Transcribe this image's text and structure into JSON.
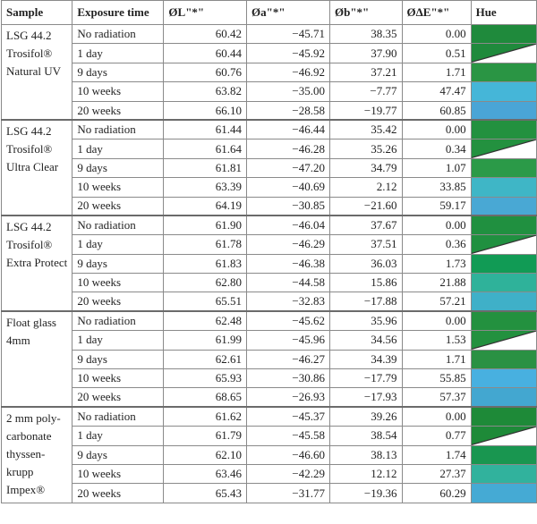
{
  "headers": [
    "Sample",
    "Exposure time",
    "ØL\"*\"",
    "Øa\"*\"",
    "Øb\"*\"",
    "ØΔE\"*\"",
    "Hue"
  ],
  "groups": [
    {
      "sample": "LSG 44.2 Trosifol® Natural UV",
      "rows": [
        {
          "time": "No radiation",
          "L": "60.42",
          "a": "−45.71",
          "b": "38.35",
          "dE": "0.00",
          "hue": "#1f8a3c",
          "diag": false
        },
        {
          "time": "1 day",
          "L": "60.44",
          "a": "−45.92",
          "b": "37.90",
          "dE": "0.51",
          "hue": "#1f8a3c",
          "diag": true
        },
        {
          "time": "9 days",
          "L": "60.76",
          "a": "−46.92",
          "b": "37.21",
          "dE": "1.71",
          "hue": "#2a9544",
          "diag": false
        },
        {
          "time": "10 weeks",
          "L": "63.82",
          "a": "−35.00",
          "b": "−7.77",
          "dE": "47.47",
          "hue": "#45b6d8",
          "diag": false
        },
        {
          "time": "20 weeks",
          "L": "66.10",
          "a": "−28.58",
          "b": "−19.77",
          "dE": "60.85",
          "hue": "#4aa5d6",
          "diag": false
        }
      ]
    },
    {
      "sample": "LSG 44.2 Trosifol® Ultra Clear",
      "rows": [
        {
          "time": "No radiation",
          "L": "61.44",
          "a": "−46.44",
          "b": "35.42",
          "dE": "0.00",
          "hue": "#23913f",
          "diag": false
        },
        {
          "time": "1 day",
          "L": "61.64",
          "a": "−46.28",
          "b": "35.26",
          "dE": "0.34",
          "hue": "#23913f",
          "diag": true
        },
        {
          "time": "9 days",
          "L": "61.81",
          "a": "−47.20",
          "b": "34.79",
          "dE": "1.07",
          "hue": "#2b9a48",
          "diag": false
        },
        {
          "time": "10 weeks",
          "L": "63.39",
          "a": "−40.69",
          "b": "2.12",
          "dE": "33.85",
          "hue": "#3fb6c6",
          "diag": false
        },
        {
          "time": "20 weeks",
          "L": "64.19",
          "a": "−30.85",
          "b": "−21.60",
          "dE": "59.17",
          "hue": "#49a8d4",
          "diag": false
        }
      ]
    },
    {
      "sample": "LSG 44.2 Trosifol® Extra Protect",
      "rows": [
        {
          "time": "No radiation",
          "L": "61.90",
          "a": "−46.04",
          "b": "37.67",
          "dE": "0.00",
          "hue": "#209040",
          "diag": false
        },
        {
          "time": "1 day",
          "L": "61.78",
          "a": "−46.29",
          "b": "37.51",
          "dE": "0.36",
          "hue": "#209040",
          "diag": true
        },
        {
          "time": "9 days",
          "L": "61.83",
          "a": "−46.38",
          "b": "36.03",
          "dE": "1.73",
          "hue": "#119b55",
          "diag": false
        },
        {
          "time": "10 weeks",
          "L": "62.80",
          "a": "−44.58",
          "b": "15.86",
          "dE": "21.88",
          "hue": "#2fb29a",
          "diag": false
        },
        {
          "time": "20 weeks",
          "L": "65.51",
          "a": "−32.83",
          "b": "−17.88",
          "dE": "57.21",
          "hue": "#3fb0c8",
          "diag": false
        }
      ]
    },
    {
      "sample": "Float glass 4mm",
      "rows": [
        {
          "time": "No radiation",
          "L": "62.48",
          "a": "−45.62",
          "b": "35.96",
          "dE": "0.00",
          "hue": "#23913f",
          "diag": false
        },
        {
          "time": "1 day",
          "L": "61.99",
          "a": "−45.96",
          "b": "34.56",
          "dE": "1.53",
          "hue": "#23913f",
          "diag": true
        },
        {
          "time": "9 days",
          "L": "62.61",
          "a": "−46.27",
          "b": "34.39",
          "dE": "1.71",
          "hue": "#2a9143",
          "diag": false
        },
        {
          "time": "10 weeks",
          "L": "65.93",
          "a": "−30.86",
          "b": "−17.79",
          "dE": "55.85",
          "hue": "#48b0e0",
          "diag": false
        },
        {
          "time": "20 weeks",
          "L": "68.65",
          "a": "−26.93",
          "b": "−17.93",
          "dE": "57.37",
          "hue": "#43a7d0",
          "diag": false
        }
      ]
    },
    {
      "sample": "2 mm poly-carbonate thyssen-krupp Impex®",
      "rows": [
        {
          "time": "No radiation",
          "L": "61.62",
          "a": "−45.37",
          "b": "39.26",
          "dE": "0.00",
          "hue": "#1e8a38",
          "diag": false
        },
        {
          "time": "1 day",
          "L": "61.79",
          "a": "−45.58",
          "b": "38.54",
          "dE": "0.77",
          "hue": "#1e8a38",
          "diag": true
        },
        {
          "time": "9 days",
          "L": "62.10",
          "a": "−46.60",
          "b": "38.13",
          "dE": "1.74",
          "hue": "#199650",
          "diag": false
        },
        {
          "time": "10 weeks",
          "L": "63.46",
          "a": "−42.29",
          "b": "12.12",
          "dE": "27.37",
          "hue": "#31b29d",
          "diag": false
        },
        {
          "time": "20 weeks",
          "L": "65.43",
          "a": "−31.77",
          "b": "−19.36",
          "dE": "60.29",
          "hue": "#45aad4",
          "diag": false
        }
      ]
    }
  ]
}
